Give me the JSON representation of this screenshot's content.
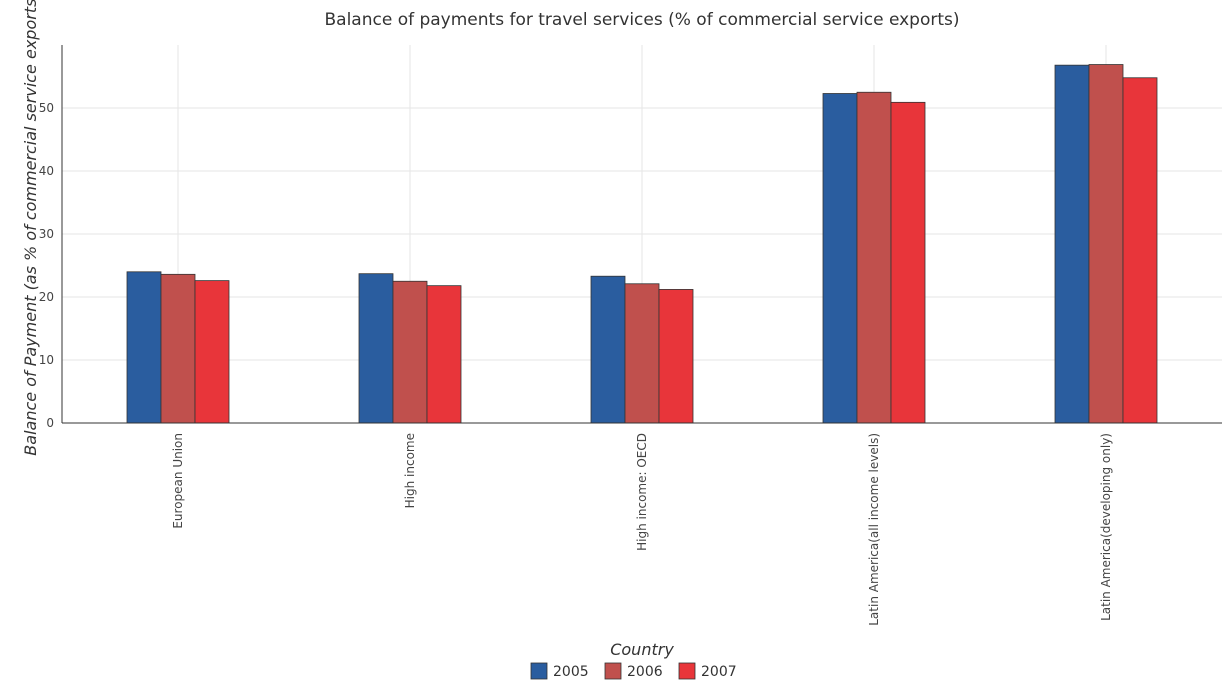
{
  "chart_data": {
    "type": "bar",
    "title": "Balance of payments for travel services (% of commercial service exports)",
    "xlabel": "Country",
    "ylabel": "Balance of Payment (as % of commercial service exports)",
    "categories": [
      "European Union",
      "High income",
      "High income: OECD",
      "Latin America(all income levels)",
      "Latin America(developing only)"
    ],
    "series": [
      {
        "name": "2005",
        "color": "#2a5d9f",
        "values": [
          24.0,
          23.7,
          23.3,
          52.3,
          56.8
        ]
      },
      {
        "name": "2006",
        "color": "#c0504d",
        "values": [
          23.6,
          22.5,
          22.1,
          52.5,
          56.9
        ]
      },
      {
        "name": "2007",
        "color": "#e8353a",
        "values": [
          22.6,
          21.8,
          21.2,
          50.9,
          54.8
        ]
      }
    ],
    "ylim": [
      0,
      60
    ],
    "yticks": [
      0,
      10,
      20,
      30,
      40,
      50
    ],
    "grid": true,
    "legend_position": "bottom"
  }
}
